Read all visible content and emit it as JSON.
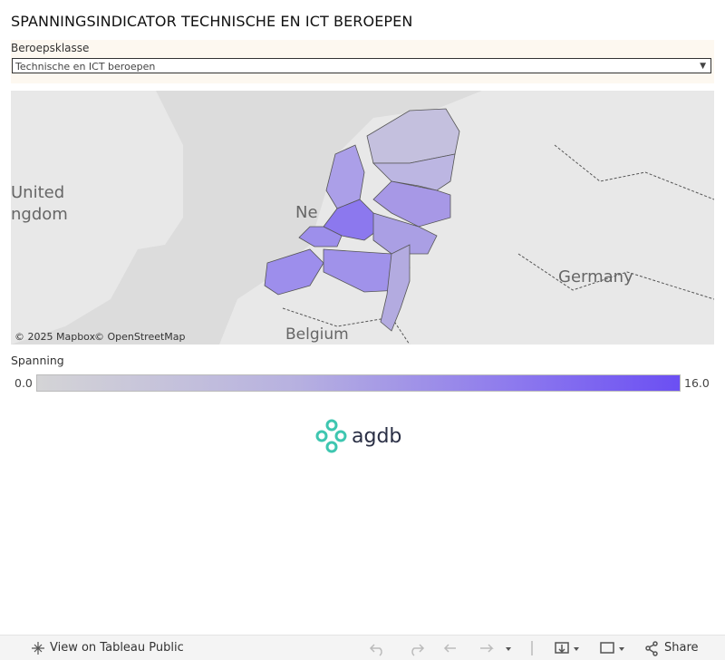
{
  "header": {
    "title": "SPANNINGSINDICATOR TECHNISCHE EN ICT BEROEPEN"
  },
  "filter": {
    "label": "Beroepsklasse",
    "selected": "Technische en ICT beroepen"
  },
  "map": {
    "labels": {
      "uk_line1": "United",
      "uk_line2": "ngdom",
      "nl": "Ne",
      "germany": "Germany",
      "belgium": "Belgium"
    },
    "attribution": {
      "mapbox": "© 2025 Mapbox",
      "osm": "© OpenStreetMap"
    }
  },
  "legend": {
    "title": "Spanning",
    "min": "0.0",
    "max": "16.0"
  },
  "logo": {
    "text": "agdb"
  },
  "footer": {
    "view": "View on Tableau Public",
    "share": "Share"
  }
}
